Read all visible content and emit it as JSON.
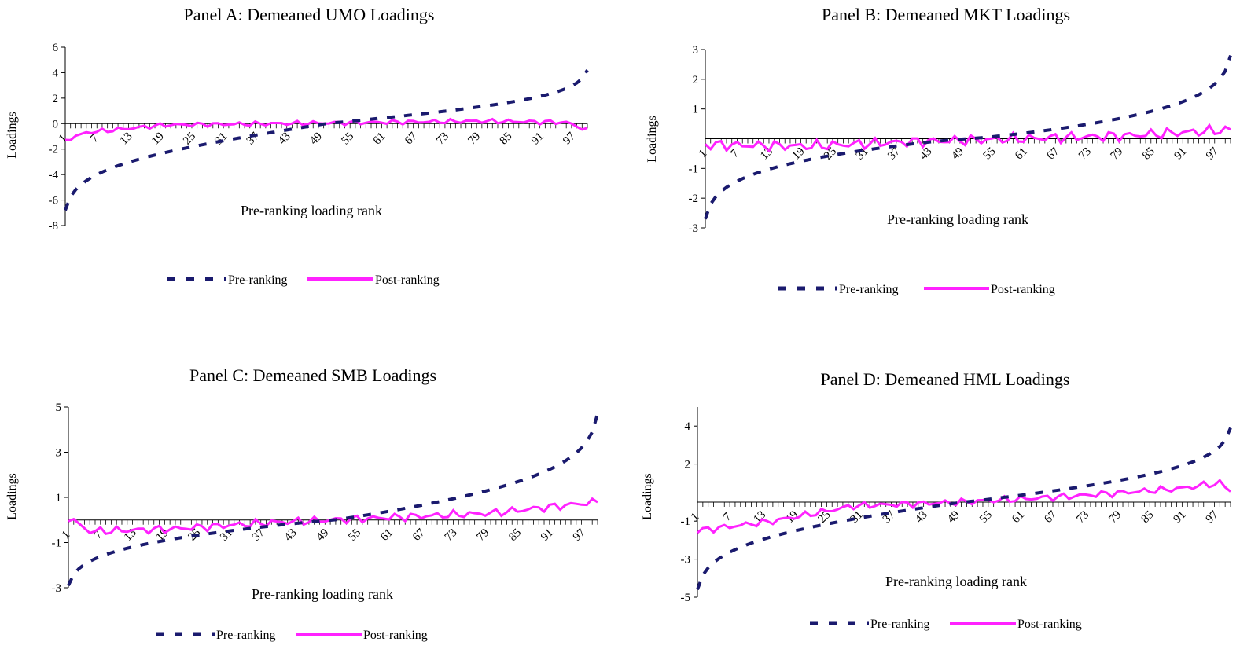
{
  "colors": {
    "pre": "#1a1a6e",
    "post": "#ff22ff",
    "axis": "#000000"
  },
  "chart_data": [
    {
      "type": "line",
      "title": "Panel A: Demeaned UMO Loadings",
      "xlabel": "Pre-ranking loading rank",
      "ylabel": "Loadings",
      "ylim": [
        -8,
        6
      ],
      "yticks": [
        -8,
        -6,
        -4,
        -2,
        0,
        2,
        4,
        6
      ],
      "xticklabels": [
        "1",
        "7",
        "13",
        "19",
        "25",
        "31",
        "37",
        "43",
        "49",
        "55",
        "61",
        "67",
        "73",
        "79",
        "85",
        "91",
        "97"
      ],
      "legend": [
        "Pre-ranking",
        "Post-ranking"
      ],
      "pre": {
        "ends": [
          -6.8,
          4.2
        ],
        "k": 1.0
      },
      "post": {
        "knots": [
          [
            1,
            -1.3
          ],
          [
            5,
            -0.7
          ],
          [
            20,
            -0.1
          ],
          [
            40,
            0.0
          ],
          [
            60,
            0.1
          ],
          [
            80,
            0.2
          ],
          [
            96,
            0.1
          ],
          [
            100,
            -0.5
          ]
        ]
      }
    },
    {
      "type": "line",
      "title": "Panel B: Demeaned MKT Loadings",
      "xlabel": "Pre-ranking loading rank",
      "ylabel": "Loadings",
      "ylim": [
        -3,
        3
      ],
      "yticks": [
        -3,
        -2,
        -1,
        1,
        2,
        3
      ],
      "xticklabels": [
        "1",
        "7",
        "13",
        "19",
        "25",
        "31",
        "37",
        "43",
        "49",
        "55",
        "61",
        "67",
        "73",
        "79",
        "85",
        "91",
        "97"
      ],
      "legend": [
        "Pre-ranking",
        "Post-ranking"
      ],
      "pre": {
        "ends": [
          -2.7,
          2.8
        ],
        "k": 1.2
      },
      "post": {
        "knots": [
          [
            1,
            -0.2
          ],
          [
            20,
            -0.25
          ],
          [
            40,
            -0.1
          ],
          [
            60,
            0.0
          ],
          [
            80,
            0.1
          ],
          [
            100,
            0.3
          ]
        ]
      }
    },
    {
      "type": "line",
      "title": "Panel C: Demeaned SMB Loadings",
      "xlabel": "Pre-ranking loading rank",
      "ylabel": "Loadings",
      "ylim": [
        -3,
        5
      ],
      "yticks": [
        -3,
        -1,
        1,
        3,
        5
      ],
      "xticklabels": [
        "1",
        "7",
        "13",
        "19",
        "25",
        "31",
        "37",
        "43",
        "49",
        "55",
        "61",
        "67",
        "73",
        "79",
        "85",
        "91",
        "97"
      ],
      "legend": [
        "Pre-ranking",
        "Post-ranking"
      ],
      "pre": {
        "ends": [
          -2.9,
          4.7
        ],
        "k": 1.1
      },
      "post": {
        "knots": [
          [
            1,
            0.1
          ],
          [
            5,
            -0.5
          ],
          [
            20,
            -0.4
          ],
          [
            40,
            -0.1
          ],
          [
            60,
            0.1
          ],
          [
            80,
            0.3
          ],
          [
            100,
            0.8
          ]
        ]
      }
    },
    {
      "type": "line",
      "title": "Panel D: Demeaned HML Loadings",
      "xlabel": "Pre-ranking loading rank",
      "ylabel": "Loadings",
      "ylim": [
        -5,
        5
      ],
      "yticks": [
        -5,
        -3,
        -1,
        2,
        4
      ],
      "xticklabels": [
        "1",
        "7",
        "13",
        "19",
        "25",
        "31",
        "37",
        "43",
        "49",
        "55",
        "61",
        "67",
        "73",
        "79",
        "85",
        "91",
        "97"
      ],
      "legend": [
        "Pre-ranking",
        "Post-ranking"
      ],
      "pre": {
        "ends": [
          -4.6,
          3.9
        ],
        "k": 1.05
      },
      "post": {
        "knots": [
          [
            1,
            -1.5
          ],
          [
            15,
            -1.0
          ],
          [
            30,
            -0.2
          ],
          [
            50,
            0.0
          ],
          [
            70,
            0.3
          ],
          [
            90,
            0.7
          ],
          [
            98,
            1.0
          ],
          [
            100,
            0.6
          ]
        ]
      }
    }
  ]
}
